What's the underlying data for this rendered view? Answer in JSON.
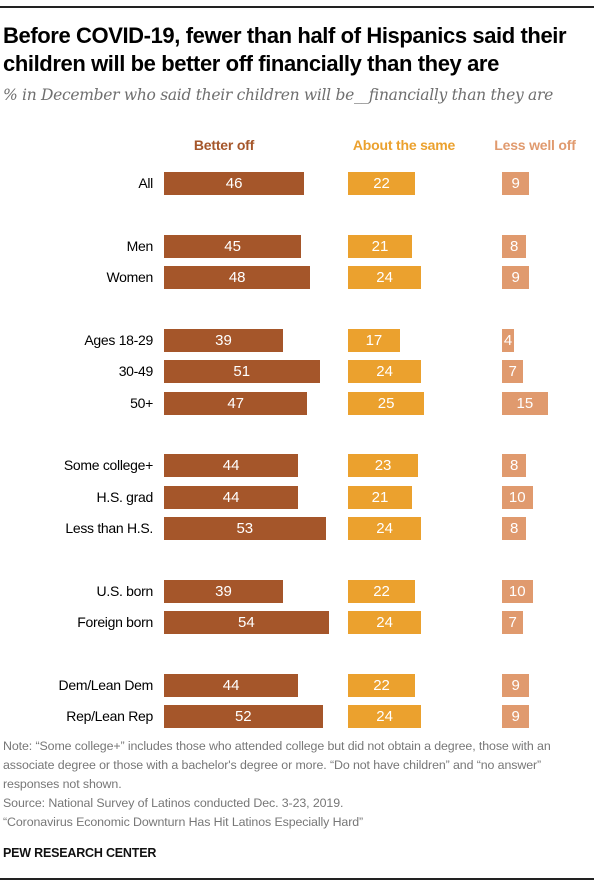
{
  "header": {
    "title": "Before COVID-19, fewer than half of Hispanics said their children will be better off financially than they are",
    "subtitle": "% in December who said their children will be__financially than they are"
  },
  "chart_data": {
    "type": "bar",
    "orientation": "horizontal",
    "title": "Before COVID-19, fewer than half of Hispanics said their children will be better off financially than they are",
    "subtitle": "% in December who said their children will be__financially than they are",
    "xlabel": "",
    "ylabel": "",
    "grid": false,
    "legend": "column headers above bars",
    "categories": [
      "All",
      "Men",
      "Women",
      "Ages 18-29",
      "30-49",
      "50+",
      "Some college+",
      "H.S. grad",
      "Less than H.S.",
      "U.S. born",
      "Foreign born",
      "Dem/Lean Dem",
      "Rep/Lean Rep"
    ],
    "groups": [
      [
        "All"
      ],
      [
        "Men",
        "Women"
      ],
      [
        "Ages 18-29",
        "30-49",
        "50+"
      ],
      [
        "Some college+",
        "H.S. grad",
        "Less than H.S."
      ],
      [
        "U.S. born",
        "Foreign born"
      ],
      [
        "Dem/Lean Dem",
        "Rep/Lean Rep"
      ]
    ],
    "series": [
      {
        "name": "Better off",
        "color": "#a5562a",
        "values": [
          46,
          45,
          48,
          39,
          51,
          47,
          44,
          44,
          53,
          39,
          54,
          44,
          52
        ]
      },
      {
        "name": "About the same",
        "color": "#eba12e",
        "values": [
          22,
          21,
          24,
          17,
          24,
          25,
          23,
          21,
          24,
          22,
          24,
          22,
          24
        ]
      },
      {
        "name": "Less well off",
        "color": "#e09a6e",
        "values": [
          9,
          8,
          9,
          4,
          7,
          15,
          8,
          10,
          8,
          10,
          7,
          9,
          9
        ]
      }
    ]
  },
  "footer": {
    "note": "Note: “Some college+” includes those who attended college but did not obtain a degree, those with an associate degree or those with a bachelor's degree or more. “Do not have children” and “no answer” responses not shown.",
    "source": "Source: National Survey of Latinos conducted Dec. 3-23, 2019.",
    "report": "“Coronavirus Economic Downturn Has Hit Latinos Especially Hard”",
    "brand": "PEW RESEARCH CENTER"
  }
}
